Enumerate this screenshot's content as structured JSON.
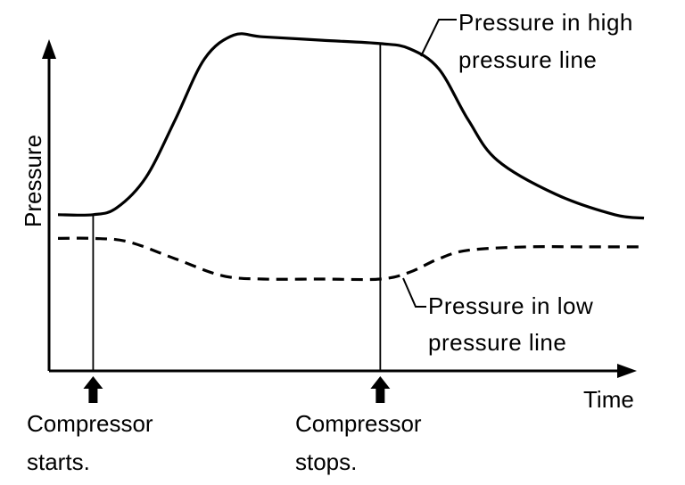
{
  "chart_data": {
    "type": "line",
    "title": "",
    "xlabel": "Time",
    "ylabel": "Pressure",
    "grid": false,
    "legend": "inline-annotations",
    "x": [
      0,
      1,
      2,
      3,
      4,
      5,
      6,
      7,
      8,
      9,
      10
    ],
    "series": [
      {
        "name": "Pressure in high pressure line",
        "style": "solid",
        "points": [
          [
            0.0,
            0.44
          ],
          [
            0.6,
            0.44
          ],
          [
            1.0,
            0.46
          ],
          [
            1.5,
            0.55
          ],
          [
            2.0,
            0.72
          ],
          [
            2.5,
            0.9
          ],
          [
            3.0,
            0.97
          ],
          [
            3.5,
            0.965
          ],
          [
            4.5,
            0.955
          ],
          [
            5.5,
            0.945
          ],
          [
            6.0,
            0.93
          ],
          [
            6.5,
            0.87
          ],
          [
            7.0,
            0.72
          ],
          [
            7.5,
            0.6
          ],
          [
            8.5,
            0.5
          ],
          [
            9.5,
            0.44
          ],
          [
            10.0,
            0.43
          ]
        ]
      },
      {
        "name": "Pressure in low pressure line",
        "style": "dashed",
        "points": [
          [
            0.0,
            0.37
          ],
          [
            0.6,
            0.37
          ],
          [
            1.2,
            0.36
          ],
          [
            2.0,
            0.31
          ],
          [
            2.8,
            0.26
          ],
          [
            3.5,
            0.25
          ],
          [
            4.5,
            0.25
          ],
          [
            5.5,
            0.25
          ],
          [
            6.0,
            0.27
          ],
          [
            6.5,
            0.31
          ],
          [
            7.0,
            0.335
          ],
          [
            8.0,
            0.345
          ],
          [
            9.0,
            0.345
          ],
          [
            10.0,
            0.345
          ]
        ]
      }
    ],
    "annotations": [
      {
        "text_lines": [
          "Pressure in high",
          "pressure line"
        ],
        "series": 0
      },
      {
        "text_lines": [
          "Pressure in low",
          "pressure line"
        ],
        "series": 1
      }
    ],
    "events": [
      {
        "x": 0.6,
        "text_lines": [
          "Compressor",
          "starts."
        ]
      },
      {
        "x": 5.5,
        "text_lines": [
          "Compressor",
          "stops."
        ]
      }
    ],
    "xlim": [
      0,
      10
    ],
    "ylim": [
      0,
      1
    ]
  },
  "colors": {
    "line": "#000000",
    "background": "#ffffff"
  }
}
